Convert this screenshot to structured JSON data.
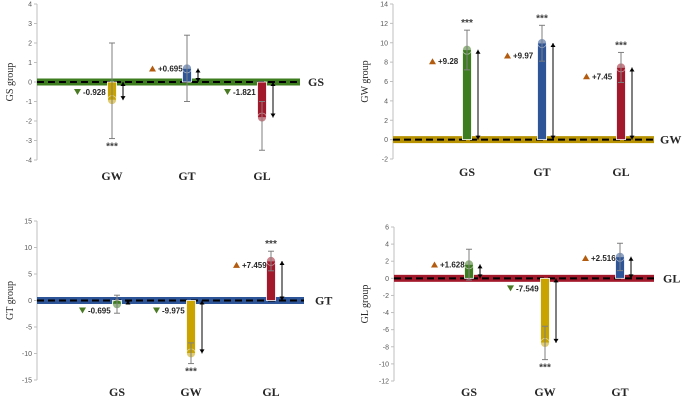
{
  "chart_data": [
    {
      "type": "bar",
      "title": "",
      "ylabel": "GS group",
      "reference_label": "GS",
      "reference_color": "#3e7d1f",
      "ylim": [
        -4,
        4
      ],
      "yticks": [
        -4,
        -3,
        -2,
        -1,
        0,
        1,
        2,
        3,
        4
      ],
      "categories": [
        {
          "label": "GW",
          "value": -0.928,
          "err_hi": 2.0,
          "err_lo": -2.9,
          "color": "#c9a400",
          "annotation": "-0.928",
          "direction": "down",
          "sig": "***",
          "sig_pos": "below"
        },
        {
          "label": "GT",
          "value": 0.695,
          "err_hi": 2.4,
          "err_lo": -1.0,
          "color": "#2e5597",
          "annotation": "+0.695",
          "direction": "up",
          "sig": "",
          "sig_pos": ""
        },
        {
          "label": "GL",
          "value": -1.821,
          "err_hi": -1.0,
          "err_lo": -3.5,
          "color": "#a3192c",
          "annotation": "-1.821",
          "direction": "down",
          "sig": "",
          "sig_pos": ""
        }
      ]
    },
    {
      "type": "bar",
      "title": "",
      "ylabel": "GW group",
      "reference_label": "GW",
      "reference_color": "#b89200",
      "ylim": [
        -2,
        14
      ],
      "yticks": [
        -2,
        0,
        2,
        4,
        6,
        8,
        10,
        12,
        14
      ],
      "categories": [
        {
          "label": "GS",
          "value": 9.28,
          "err_hi": 11.3,
          "err_lo": 7.2,
          "color": "#3e7d1f",
          "annotation": "+9.28",
          "direction": "up",
          "sig": "***",
          "sig_pos": "above"
        },
        {
          "label": "GT",
          "value": 9.97,
          "err_hi": 11.8,
          "err_lo": 8.1,
          "color": "#2e5597",
          "annotation": "+9.97",
          "direction": "up",
          "sig": "***",
          "sig_pos": "above"
        },
        {
          "label": "GL",
          "value": 7.45,
          "err_hi": 9.0,
          "err_lo": 5.9,
          "color": "#a3192c",
          "annotation": "+7.45",
          "direction": "up",
          "sig": "***",
          "sig_pos": "above"
        }
      ]
    },
    {
      "type": "bar",
      "title": "",
      "ylabel": "GT group",
      "reference_label": "GT",
      "reference_color": "#2e5597",
      "ylim": [
        -15,
        15
      ],
      "yticks": [
        -15,
        -10,
        -5,
        0,
        5,
        10,
        15
      ],
      "categories": [
        {
          "label": "GS",
          "value": -0.695,
          "err_hi": 1.0,
          "err_lo": -2.4,
          "color": "#3e7d1f",
          "annotation": "-0.695",
          "direction": "down",
          "sig": "",
          "sig_pos": ""
        },
        {
          "label": "GW",
          "value": -9.975,
          "err_hi": -8.0,
          "err_lo": -11.9,
          "color": "#c9a400",
          "annotation": "-9.975",
          "direction": "down",
          "sig": "***",
          "sig_pos": "below"
        },
        {
          "label": "GL",
          "value": 7.459,
          "err_hi": 9.3,
          "err_lo": 5.6,
          "color": "#a3192c",
          "annotation": "+7.459",
          "direction": "up",
          "sig": "***",
          "sig_pos": "above"
        }
      ]
    },
    {
      "type": "bar",
      "title": "",
      "ylabel": "GL group",
      "reference_label": "GL",
      "reference_color": "#a3192c",
      "ylim": [
        -12,
        6
      ],
      "yticks": [
        -12,
        -10,
        -8,
        -6,
        -4,
        -2,
        0,
        2,
        4,
        6
      ],
      "categories": [
        {
          "label": "GS",
          "value": 1.628,
          "err_hi": 3.4,
          "err_lo": -0.2,
          "color": "#3e7d1f",
          "annotation": "+1.628",
          "direction": "up",
          "sig": "",
          "sig_pos": ""
        },
        {
          "label": "GW",
          "value": -7.549,
          "err_hi": -5.6,
          "err_lo": -9.5,
          "color": "#c9a400",
          "annotation": "-7.549",
          "direction": "down",
          "sig": "***",
          "sig_pos": "below"
        },
        {
          "label": "GT",
          "value": 2.516,
          "err_hi": 4.1,
          "err_lo": 0.9,
          "color": "#2e5597",
          "annotation": "+2.516",
          "direction": "up",
          "sig": "",
          "sig_pos": ""
        }
      ]
    }
  ]
}
